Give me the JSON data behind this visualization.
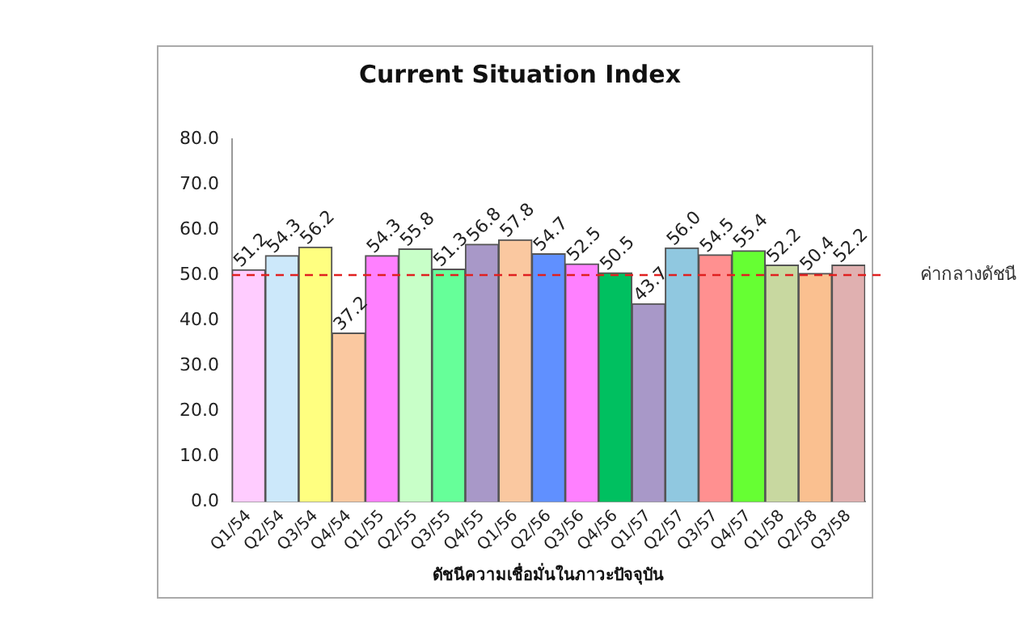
{
  "chart_data": {
    "type": "bar",
    "title": "Current Situation Index",
    "xlabel": "ดัชนีความเชื่อมั่นในภาวะปัจจุบัน",
    "categories": [
      "Q1/54",
      "Q2/54",
      "Q3/54",
      "Q4/54",
      "Q1/55",
      "Q2/55",
      "Q3/55",
      "Q4/55",
      "Q1/56",
      "Q2/56",
      "Q3/56",
      "Q4/56",
      "Q1/57",
      "Q2/57",
      "Q3/57",
      "Q4/57",
      "Q1/58",
      "Q2/58",
      "Q3/58"
    ],
    "values": [
      51.2,
      54.3,
      56.2,
      37.2,
      54.3,
      55.8,
      51.3,
      56.8,
      57.8,
      54.7,
      52.5,
      50.5,
      43.7,
      56.0,
      54.5,
      55.4,
      52.2,
      50.4,
      52.2
    ],
    "colors": [
      "#ffccff",
      "#cce8fa",
      "#ffff80",
      "#fac8a0",
      "#ff80ff",
      "#c8ffc8",
      "#66ff99",
      "#a898c8",
      "#fac8a0",
      "#6090ff",
      "#ff80ff",
      "#00c060",
      "#a898c8",
      "#90c8e0",
      "#ff9090",
      "#66ff33",
      "#c8d8a0",
      "#fac090",
      "#e0b0b0"
    ],
    "ylim": [
      0,
      80
    ],
    "yticks": [
      {
        "value": 0,
        "label": "0.0"
      },
      {
        "value": 10,
        "label": "10.0"
      },
      {
        "value": 20,
        "label": "20.0"
      },
      {
        "value": 30,
        "label": "30.0"
      },
      {
        "value": 40,
        "label": "40.0"
      },
      {
        "value": 50,
        "label": "50.0"
      },
      {
        "value": 60,
        "label": "60.0"
      },
      {
        "value": 70,
        "label": "70.0"
      },
      {
        "value": 80,
        "label": "80.0"
      }
    ],
    "value_labels": [
      "51.2",
      "54.3",
      "56.2",
      "37.2",
      "54.3",
      "55.8",
      "51.3",
      "56.8",
      "57.8",
      "54.7",
      "52.5",
      "50.5",
      "43.7",
      "56.0",
      "54.5",
      "55.4",
      "52.2",
      "50.4",
      "52.2"
    ],
    "ref_lines": [
      {
        "axis": "y",
        "value": 50,
        "label": "ค่ากลางดัชนี",
        "color": "#e02020",
        "line_style": "dashed"
      }
    ],
    "grid": false,
    "legend": false
  }
}
